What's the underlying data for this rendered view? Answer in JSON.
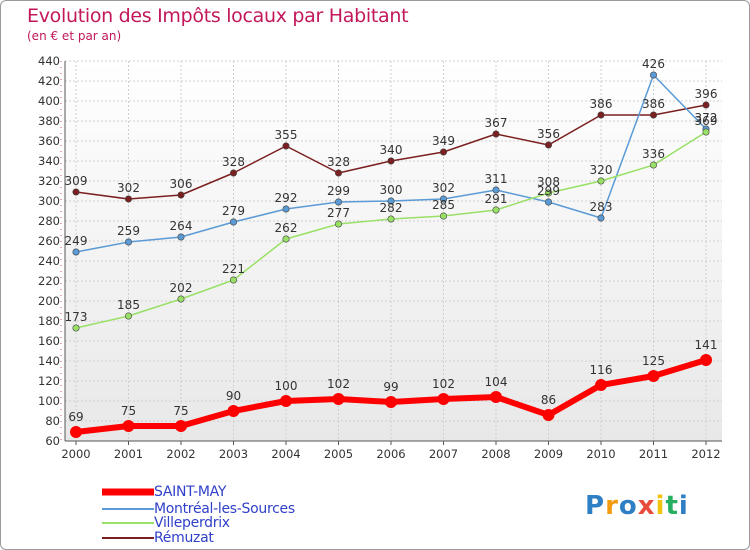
{
  "header": {
    "title": "Evolution des Impôts locaux par Habitant",
    "subtitle": "(en € et par an)"
  },
  "logo": {
    "text": "Proxiti"
  },
  "colors": {
    "title": "#c2185b",
    "legend_text": "#3040c8",
    "grid": "#cccccc",
    "axis_text": "#333333"
  },
  "chart_data": {
    "type": "line",
    "title": "Evolution des Impôts locaux par Habitant",
    "subtitle": "(en € et par an)",
    "xlabel": "",
    "ylabel": "",
    "ylim": [
      60,
      440
    ],
    "ytick_step": 20,
    "grid": true,
    "legend_position": "bottom-left",
    "x": [
      "2000",
      "2001",
      "2002",
      "2003",
      "2004",
      "2005",
      "2006",
      "2007",
      "2008",
      "2009",
      "2010",
      "2011",
      "2012"
    ],
    "series": [
      {
        "name": "SAINT-MAY",
        "color": "#ff0000",
        "emphasis": true,
        "values": [
          69,
          75,
          75,
          90,
          100,
          102,
          99,
          102,
          104,
          86,
          116,
          125,
          141
        ]
      },
      {
        "name": "Montréal-les-Sources",
        "color": "#5b9bd5",
        "values": [
          249,
          259,
          264,
          279,
          292,
          299,
          300,
          302,
          311,
          299,
          283,
          426,
          372
        ]
      },
      {
        "name": "Villeperdrix",
        "color": "#99e066",
        "values": [
          173,
          185,
          202,
          221,
          262,
          277,
          282,
          285,
          291,
          308,
          320,
          336,
          369
        ]
      },
      {
        "name": "Rémuzat",
        "color": "#7b2020",
        "values": [
          309,
          302,
          306,
          328,
          355,
          328,
          340,
          349,
          367,
          356,
          386,
          386,
          396
        ]
      }
    ]
  }
}
